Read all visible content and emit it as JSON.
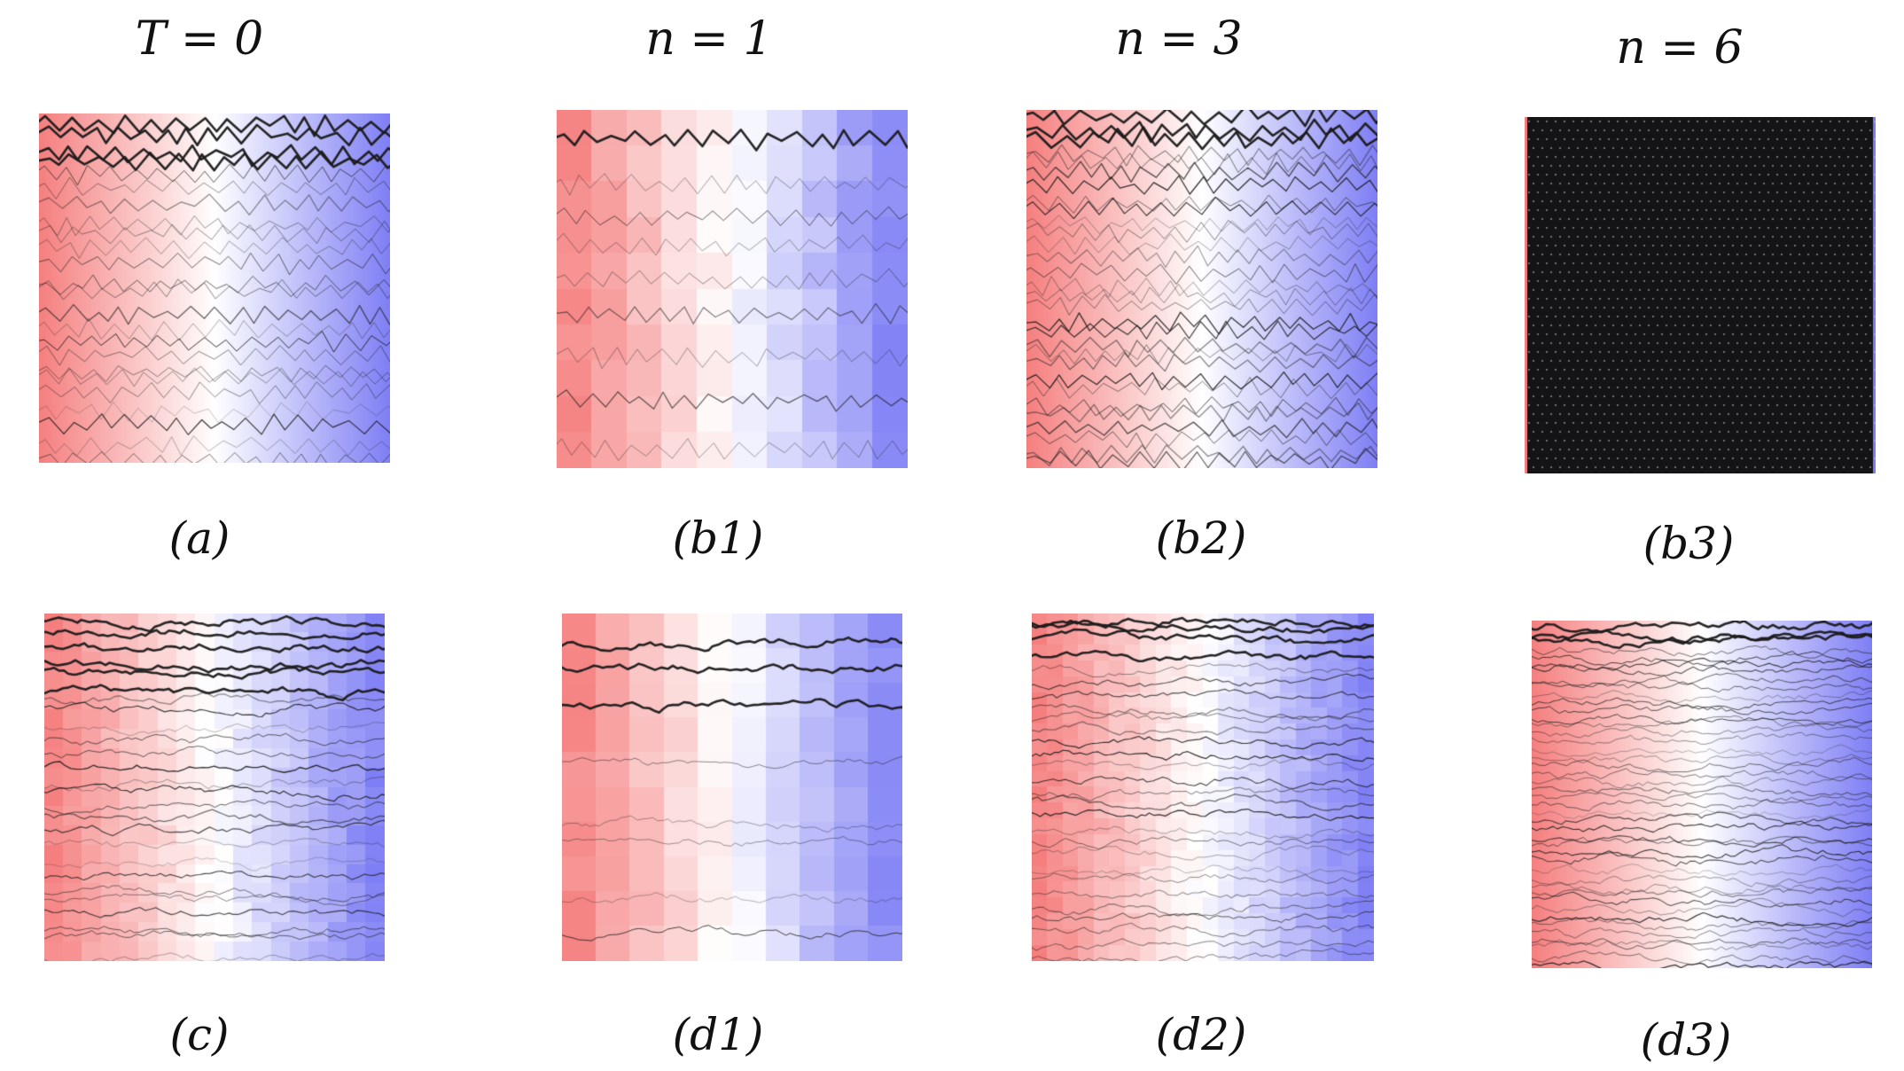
{
  "column_titles": [
    "T = 0",
    "n = 1",
    "n = 3",
    "n = 6"
  ],
  "panels": [
    {
      "caption": "(a)",
      "style": "zigzag",
      "cells": 0,
      "lines": 24,
      "heavy": 4
    },
    {
      "caption": "(b1)",
      "style": "zigzag",
      "cells": 10,
      "lines": 9,
      "heavy": 1
    },
    {
      "caption": "(b2)",
      "style": "zigzag",
      "cells": 0,
      "lines": 30,
      "heavy": 3
    },
    {
      "caption": "(b3)",
      "style": "mesh",
      "cells": 0,
      "lines": 0,
      "heavy": 0
    },
    {
      "caption": "(c)",
      "style": "wavy",
      "cells": 18,
      "lines": 26,
      "heavy": 6
    },
    {
      "caption": "(d1)",
      "style": "wavy",
      "cells": 10,
      "lines": 8,
      "heavy": 3
    },
    {
      "caption": "(d2)",
      "style": "wavy",
      "cells": 22,
      "lines": 28,
      "heavy": 4
    },
    {
      "caption": "(d3)",
      "style": "wavy",
      "cells": 0,
      "lines": 44,
      "heavy": 3
    }
  ],
  "colors": {
    "left": "#f57f7f",
    "mid": "#ffffff",
    "right": "#7f7ff5",
    "line": "#1a1a1a"
  }
}
